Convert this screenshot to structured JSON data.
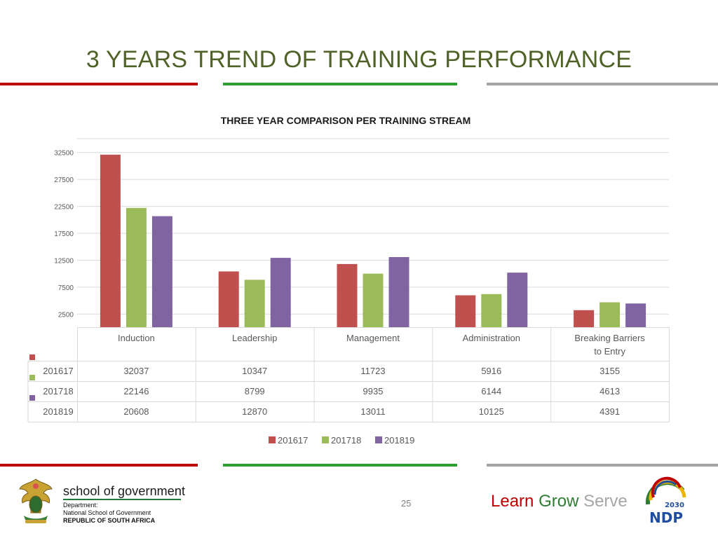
{
  "slide": {
    "title": "3 YEARS TREND OF TRAINING PERFORMANCE",
    "page_number": "25"
  },
  "colors": {
    "title": "#4f6228",
    "rule_red": "#c00000",
    "rule_green": "#2e9e2e",
    "rule_gray": "#a6a6a6",
    "series": [
      "#c0504d",
      "#9bbb59",
      "#8064a2"
    ]
  },
  "footer": {
    "org_name": "school of government",
    "department_lines": [
      "Department:",
      "National School of Government"
    ],
    "country": "REPUBLIC OF SOUTH AFRICA",
    "tagline": [
      {
        "text": "Learn",
        "color": "#c00000"
      },
      {
        "text": "Grow",
        "color": "#2e7d32"
      },
      {
        "text": "Serve",
        "color": "#a6a6a6"
      }
    ],
    "ndp_logo_year": "2030",
    "ndp_logo_text": "NDP",
    "coat_of_arms_icon": "coat-of-arms-icon"
  },
  "chart_data": {
    "type": "bar",
    "title": "THREE YEAR COMPARISON PER TRAINING STREAM",
    "categories": [
      "Induction",
      "Leadership",
      "Management",
      "Administration",
      "Breaking Barriers to Entry"
    ],
    "series": [
      {
        "name": "201617",
        "values": [
          32037,
          10347,
          11723,
          5916,
          3155
        ]
      },
      {
        "name": "201718",
        "values": [
          22146,
          8799,
          9935,
          6144,
          4613
        ]
      },
      {
        "name": "201819",
        "values": [
          20608,
          12870,
          13011,
          10125,
          4391
        ]
      }
    ],
    "yticks": [
      2500,
      7500,
      12500,
      17500,
      22500,
      27500,
      32500
    ],
    "ylim": [
      0,
      35000
    ],
    "grid": true,
    "data_table": true,
    "legend": "bottom"
  }
}
